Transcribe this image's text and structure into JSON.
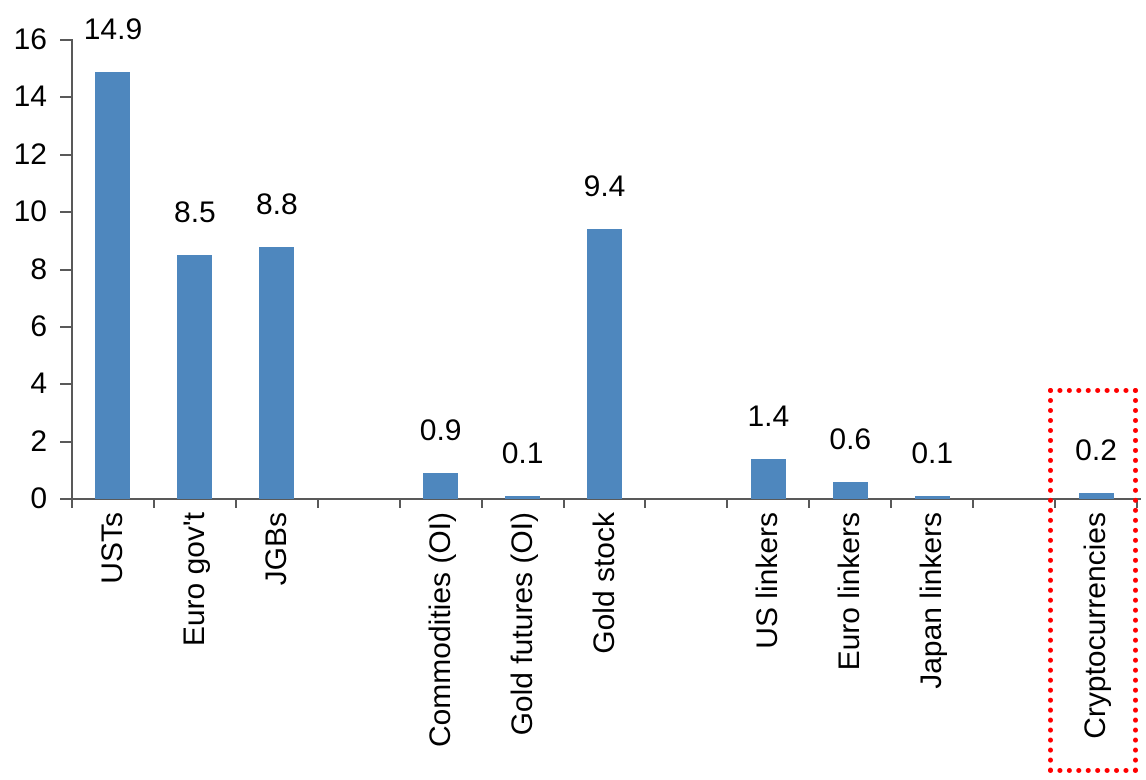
{
  "chart_data": {
    "type": "bar",
    "title": "",
    "xlabel": "",
    "ylabel": "",
    "categories": [
      "USTs",
      "Euro gov't",
      "JGBs",
      "Commodities (OI)",
      "Gold futures (OI)",
      "Gold stock",
      "US linkers",
      "Euro linkers",
      "Japan linkers",
      "Cryptocurrencies"
    ],
    "values": [
      14.9,
      8.5,
      8.8,
      0.9,
      0.1,
      9.4,
      1.4,
      0.6,
      0.1,
      0.2
    ],
    "value_labels": [
      "14.9",
      "8.5",
      "8.8",
      "0.9",
      "0.1",
      "9.4",
      "1.4",
      "0.6",
      "0.1",
      "0.2"
    ],
    "y_ticks": [
      0,
      2,
      4,
      6,
      8,
      10,
      12,
      14,
      16
    ],
    "ylim": [
      0,
      16
    ],
    "grid": "off",
    "legend": "none",
    "x_label_rotation_deg": 90,
    "slot_positions": [
      0,
      1,
      2,
      4,
      5,
      6,
      8,
      9,
      10,
      12
    ],
    "total_slots": 13,
    "bar_color": "#4E87BE",
    "axis_color": "#595959",
    "text_color": "#000000",
    "highlight": {
      "category": "Cryptocurrencies",
      "style": "dotted-box",
      "color": "#FF0000"
    }
  }
}
